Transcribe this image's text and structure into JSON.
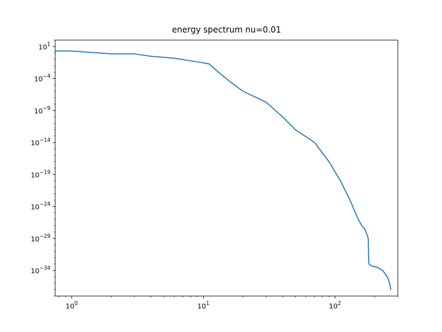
{
  "chart_data": {
    "type": "line",
    "title": "energy spectrum nu=0.01",
    "xlabel": "",
    "ylabel": "",
    "xscale": "log",
    "yscale": "log",
    "xlim": [
      0.75,
      300
    ],
    "ylim": [
      1e-38,
      100.0
    ],
    "grid": false,
    "legend": "none",
    "x_ticks": [
      {
        "value": 1,
        "base": "10",
        "exp": "0"
      },
      {
        "value": 10,
        "base": "10",
        "exp": "1"
      },
      {
        "value": 100,
        "base": "10",
        "exp": "2"
      }
    ],
    "y_ticks": [
      {
        "value": 10.0,
        "base": "10",
        "exp": "1"
      },
      {
        "value": 0.0001,
        "base": "10",
        "exp": "−4"
      },
      {
        "value": 1e-09,
        "base": "10",
        "exp": "−9"
      },
      {
        "value": 1e-14,
        "base": "10",
        "exp": "−14"
      },
      {
        "value": 1e-19,
        "base": "10",
        "exp": "−19"
      },
      {
        "value": 1e-24,
        "base": "10",
        "exp": "−24"
      },
      {
        "value": 1e-29,
        "base": "10",
        "exp": "−29"
      },
      {
        "value": 1e-34,
        "base": "10",
        "exp": "−34"
      }
    ],
    "series": [
      {
        "color": "#1f77b4",
        "points": [
          [
            0.75,
            2.0
          ],
          [
            1,
            2.0
          ],
          [
            2,
            0.7
          ],
          [
            3,
            0.7
          ],
          [
            4,
            0.3
          ],
          [
            6,
            0.15
          ],
          [
            9,
            0.04
          ],
          [
            11,
            0.02
          ],
          [
            13,
            0.001
          ],
          [
            16,
            3e-05
          ],
          [
            20,
            1e-06
          ],
          [
            30,
            2e-08
          ],
          [
            40,
            1e-10
          ],
          [
            50,
            1e-12
          ],
          [
            70,
            1e-14
          ],
          [
            90,
            1e-17
          ],
          [
            110,
            1e-20
          ],
          [
            130,
            1e-23
          ],
          [
            150,
            1e-26
          ],
          [
            160,
            1e-27
          ],
          [
            170,
            2e-28
          ],
          [
            179,
            1e-29
          ],
          [
            180,
            1e-32
          ],
          [
            181,
            1e-33
          ],
          [
            190,
            5e-34
          ],
          [
            210,
            3e-34
          ],
          [
            230,
            1e-34
          ],
          [
            250,
            1e-35
          ],
          [
            260,
            1e-36
          ],
          [
            266,
            1e-37
          ]
        ]
      }
    ]
  }
}
